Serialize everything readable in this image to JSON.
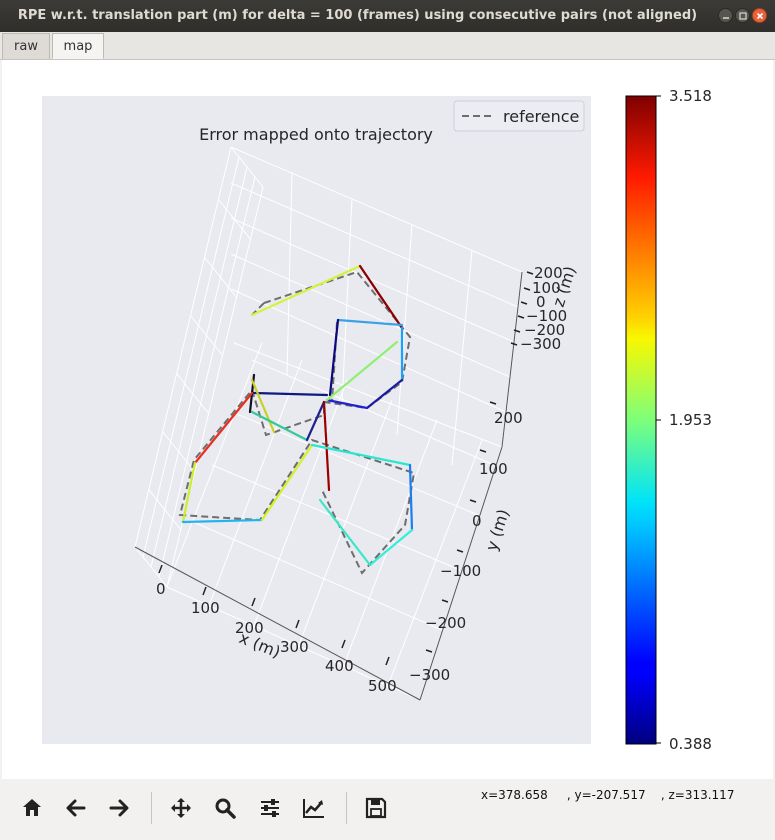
{
  "window": {
    "title": "RPE w.r.t. translation part (m) for delta = 100 (frames) using consecutive pairs (not aligned)"
  },
  "tabs": [
    {
      "label": "raw",
      "active": false
    },
    {
      "label": "map",
      "active": true
    }
  ],
  "plot": {
    "title": "Error mapped onto trajectory",
    "legend": {
      "label": "reference",
      "placement": "top-right"
    },
    "xlabel": "x (m)",
    "ylabel": "y (m)",
    "zlabel": "z (m)",
    "x_ticks": [
      "0",
      "100",
      "200",
      "300",
      "400",
      "500"
    ],
    "y_ticks": [
      "200",
      "100",
      "0",
      "−100",
      "−200",
      "−300"
    ],
    "z_ticks": [
      "200",
      "100",
      "0",
      "−100",
      "−200",
      "−300"
    ],
    "colorbar": {
      "min": 0.388,
      "mid": 1.953,
      "max": 3.518,
      "tick_labels": [
        "3.518",
        "1.953",
        "0.388"
      ],
      "colormap": "jet"
    }
  },
  "toolbar": {
    "buttons": [
      {
        "name": "home",
        "icon": "home-icon"
      },
      {
        "name": "back",
        "icon": "arrow-left-icon"
      },
      {
        "name": "forward",
        "icon": "arrow-right-icon"
      },
      {
        "name": "pan",
        "icon": "move-icon"
      },
      {
        "name": "zoom",
        "icon": "zoom-icon"
      },
      {
        "name": "subplots",
        "icon": "sliders-icon"
      },
      {
        "name": "customize",
        "icon": "line-chart-icon"
      },
      {
        "name": "save",
        "icon": "save-icon"
      }
    ],
    "coords": "x=378.658     , y=-207.517    , z=313.117"
  },
  "colors": {
    "titlebar": "#3c3b37",
    "axes_bg": "#e9e9f0",
    "reference_line": "#6e6e6e"
  }
}
